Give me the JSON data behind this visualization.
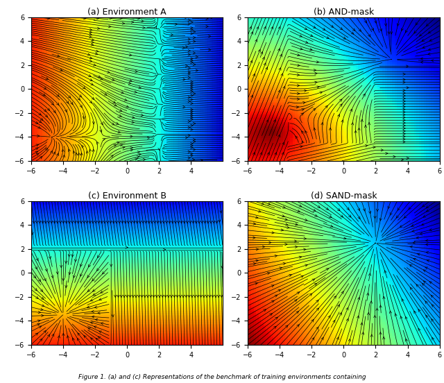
{
  "xlim": [
    -6,
    6
  ],
  "ylim": [
    -6,
    6
  ],
  "grid_n": 80,
  "stream_density": 2.0,
  "titles": [
    "(a) Environment A",
    "(b) AND-mask",
    "(c) Environment B",
    "(d) SAND-mask"
  ],
  "cmap": "jet",
  "figsize": [
    6.4,
    5.52
  ],
  "dpi": 100,
  "subplot_titles_fontsize": 9,
  "tick_fontsize": 7,
  "fig_caption": "Figure 1. (a) and (c) Representations of the benchmark of training environments containing"
}
